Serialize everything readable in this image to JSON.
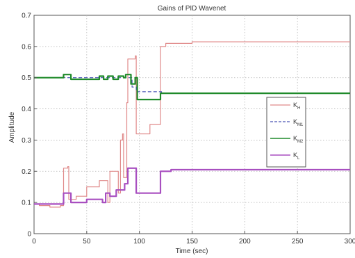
{
  "chart_data": {
    "type": "line",
    "title": "Gains of PID Wavenet",
    "xlabel": "Time (sec)",
    "ylabel": "Amplitude",
    "xlim": [
      0,
      300
    ],
    "ylim": [
      0,
      0.7
    ],
    "xticks": [
      "0",
      "50",
      "100",
      "150",
      "200",
      "250",
      "300"
    ],
    "yticks": [
      "0",
      "0.1",
      "0.2",
      "0.3",
      "0.4",
      "0.5",
      "0.6",
      "0.7"
    ],
    "grid": true,
    "legend_placement": "center-right",
    "series": [
      {
        "name": "K_H",
        "label_main": "K",
        "label_sub": "H",
        "color": "#e08a8a",
        "style": "solid",
        "width": 1.2,
        "points": [
          [
            0,
            0.095
          ],
          [
            5,
            0.09
          ],
          [
            15,
            0.085
          ],
          [
            25,
            0.09
          ],
          [
            28,
            0.21
          ],
          [
            32,
            0.215
          ],
          [
            33,
            0.11
          ],
          [
            40,
            0.12
          ],
          [
            48,
            0.12
          ],
          [
            50,
            0.15
          ],
          [
            60,
            0.15
          ],
          [
            62,
            0.17
          ],
          [
            68,
            0.17
          ],
          [
            70,
            0.1
          ],
          [
            72,
            0.2
          ],
          [
            78,
            0.2
          ],
          [
            80,
            0.13
          ],
          [
            82,
            0.3
          ],
          [
            84,
            0.32
          ],
          [
            85,
            0.18
          ],
          [
            88,
            0.42
          ],
          [
            89,
            0.56
          ],
          [
            96,
            0.57
          ],
          [
            97,
            0.32
          ],
          [
            108,
            0.32
          ],
          [
            110,
            0.35
          ],
          [
            118,
            0.35
          ],
          [
            120,
            0.6
          ],
          [
            125,
            0.61
          ],
          [
            150,
            0.615
          ],
          [
            300,
            0.615
          ]
        ]
      },
      {
        "name": "K_M1",
        "label_main": "K",
        "label_sub": "M1",
        "color": "#4a55b5",
        "style": "dashed",
        "width": 1.2,
        "points": [
          [
            0,
            0.5
          ],
          [
            20,
            0.5
          ],
          [
            92,
            0.5
          ],
          [
            93,
            0.47
          ],
          [
            96,
            0.47
          ],
          [
            97,
            0.455
          ],
          [
            120,
            0.455
          ],
          [
            121,
            0.45
          ],
          [
            300,
            0.45
          ]
        ]
      },
      {
        "name": "K_M2",
        "label_main": "K",
        "label_sub": "M2",
        "color": "#1f8a2a",
        "style": "solid",
        "width": 2.2,
        "points": [
          [
            0,
            0.5
          ],
          [
            20,
            0.5
          ],
          [
            25,
            0.5
          ],
          [
            28,
            0.51
          ],
          [
            33,
            0.51
          ],
          [
            35,
            0.495
          ],
          [
            55,
            0.495
          ],
          [
            62,
            0.505
          ],
          [
            66,
            0.495
          ],
          [
            70,
            0.505
          ],
          [
            75,
            0.495
          ],
          [
            80,
            0.505
          ],
          [
            85,
            0.5
          ],
          [
            87,
            0.51
          ],
          [
            90,
            0.51
          ],
          [
            92,
            0.48
          ],
          [
            96,
            0.5
          ],
          [
            98,
            0.43
          ],
          [
            118,
            0.43
          ],
          [
            120,
            0.45
          ],
          [
            300,
            0.45
          ]
        ]
      },
      {
        "name": "K_L",
        "label_main": "K",
        "label_sub": "L",
        "color": "#a84fc0",
        "style": "solid",
        "width": 2.2,
        "points": [
          [
            0,
            0.095
          ],
          [
            25,
            0.095
          ],
          [
            28,
            0.13
          ],
          [
            32,
            0.13
          ],
          [
            35,
            0.1
          ],
          [
            45,
            0.1
          ],
          [
            50,
            0.11
          ],
          [
            60,
            0.11
          ],
          [
            65,
            0.1
          ],
          [
            68,
            0.13
          ],
          [
            72,
            0.12
          ],
          [
            78,
            0.14
          ],
          [
            82,
            0.14
          ],
          [
            86,
            0.16
          ],
          [
            89,
            0.21
          ],
          [
            96,
            0.21
          ],
          [
            97,
            0.13
          ],
          [
            118,
            0.13
          ],
          [
            120,
            0.2
          ],
          [
            130,
            0.205
          ],
          [
            300,
            0.205
          ]
        ]
      }
    ]
  }
}
